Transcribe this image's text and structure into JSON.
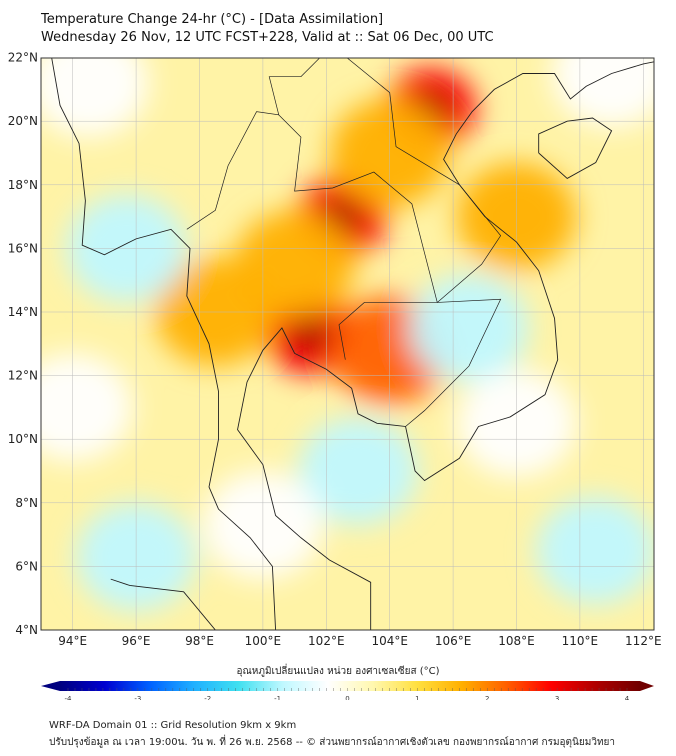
{
  "header": {
    "title": "Temperature Change 24-hr (°C) - [Data Assimilation]",
    "subtitle": "Wednesday 26 Nov, 12 UTC FCST+228, Valid at :: Sat 06 Dec, 00 UTC"
  },
  "map": {
    "lon_range": [
      93,
      112.5
    ],
    "lat_range": [
      4,
      22.2
    ],
    "lat_labels": [
      "22°N",
      "20°N",
      "18°N",
      "16°N",
      "14°N",
      "12°N",
      "10°N",
      "8°N",
      "6°N",
      "4°N"
    ],
    "lon_labels": [
      "94°E",
      "96°E",
      "98°E",
      "100°E",
      "102°E",
      "104°E",
      "106°E",
      "108°E",
      "110°E",
      "112°E"
    ],
    "field_features": [
      {
        "lon": 105.3,
        "lat": 20.4,
        "value": 3.0
      },
      {
        "lon": 102.5,
        "lat": 17.0,
        "value": 3.0
      },
      {
        "lon": 101.5,
        "lat": 13.3,
        "value": 2.6
      },
      {
        "lon": 104,
        "lat": 12.8,
        "value": 2.0
      },
      {
        "lon": 101,
        "lat": 15.5,
        "value": 1.8
      },
      {
        "lon": 104,
        "lat": 19,
        "value": 1.8
      },
      {
        "lon": 98.5,
        "lat": 14,
        "value": 1.5
      },
      {
        "lon": 108,
        "lat": 17,
        "value": 1.3
      },
      {
        "lon": 106.5,
        "lat": 13.5,
        "value": -0.9
      },
      {
        "lon": 103,
        "lat": 9,
        "value": -0.8
      },
      {
        "lon": 96,
        "lat": 6.3,
        "value": -1.0
      },
      {
        "lon": 95.7,
        "lat": 16,
        "value": -0.9
      },
      {
        "lon": 110.5,
        "lat": 6.5,
        "value": -0.8
      },
      {
        "lon": 111,
        "lat": 21.5,
        "value": -0.6
      },
      {
        "lon": 94.5,
        "lat": 21.2,
        "value": -0.6
      },
      {
        "lon": 108,
        "lat": 10.5,
        "value": -0.4
      },
      {
        "lon": 100,
        "lat": 7.3,
        "value": -0.4
      },
      {
        "lon": 94,
        "lat": 11,
        "value": -0.3
      }
    ]
  },
  "colorbar": {
    "label": "อุณหภูมิเปลี่ยนแปลง หน่วย องศาเซลเซียส (°C)",
    "ticks": [
      "-4",
      "-3",
      "-2",
      "-1",
      "0",
      "1",
      "2",
      "3",
      "4"
    ],
    "range": [
      -4,
      4
    ],
    "colors": [
      "#00007f",
      "#0000d0",
      "#0060ff",
      "#20b0ff",
      "#40e0f0",
      "#c0f8ff",
      "#ffffff",
      "#fff8b0",
      "#ffe040",
      "#ffb000",
      "#ff6000",
      "#ff0000",
      "#b00000",
      "#700000"
    ]
  },
  "footer": {
    "line1": "WRF-DA Domain 01 :: Grid Resolution 9km x 9km",
    "line2": "ปรับปรุงข้อมูล ณ เวลา 19:00น. วัน พ. ที่ 26 พ.ย. 2568 -- © ส่วนพยากรณ์อากาศเชิงตัวเลข กองพยากรณ์อากาศ กรมอุตุนิยมวิทยา"
  }
}
